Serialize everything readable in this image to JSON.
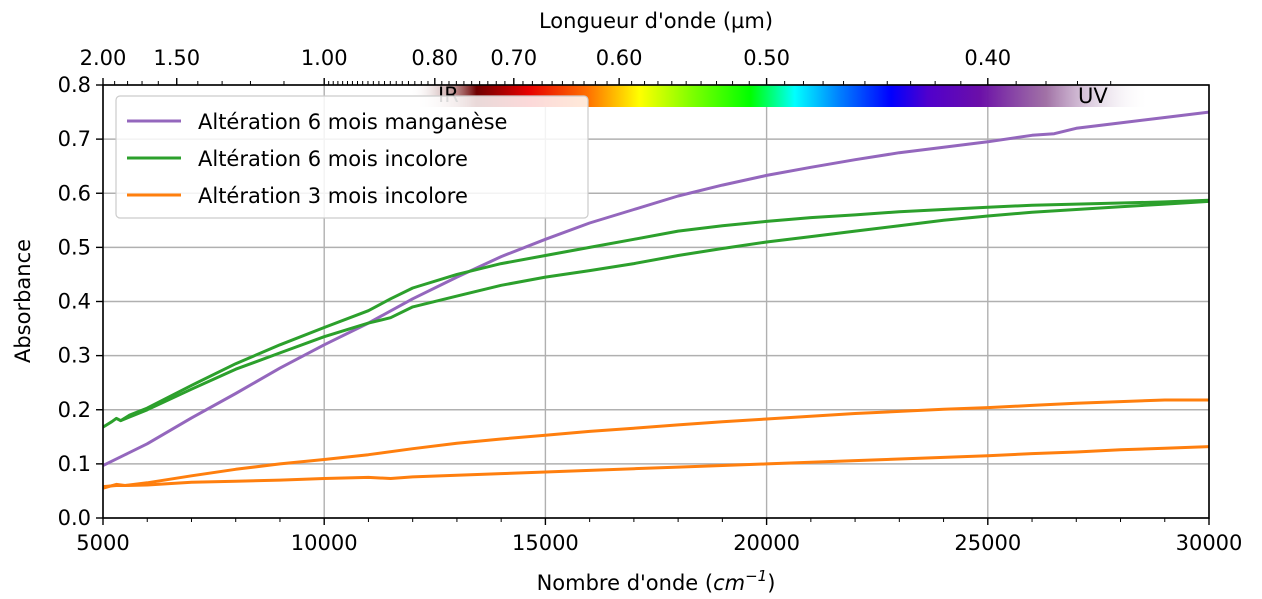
{
  "chart_data": {
    "type": "line",
    "xlabel": "Nombre d'onde",
    "xlabel_unit_base": "cm",
    "xlabel_unit_exp": "−1",
    "ylabel": "Absorbance",
    "top_xlabel": "Longueur d'onde (µm)",
    "xlim": [
      5000,
      30000
    ],
    "ylim": [
      0,
      0.8
    ],
    "x_ticks": [
      5000,
      10000,
      15000,
      20000,
      25000,
      30000
    ],
    "x_tick_labels": [
      "5000",
      "10000",
      "15000",
      "20000",
      "25000",
      "30000"
    ],
    "y_ticks": [
      0.0,
      0.1,
      0.2,
      0.3,
      0.4,
      0.5,
      0.6,
      0.7,
      0.8
    ],
    "y_tick_labels": [
      "0.0",
      "0.1",
      "0.2",
      "0.3",
      "0.4",
      "0.5",
      "0.6",
      "0.7",
      "0.8"
    ],
    "top_ticks_um": [
      2.0,
      1.5,
      1.0,
      0.8,
      0.7,
      0.6,
      0.5,
      0.4
    ],
    "top_tick_labels": [
      "2.00",
      "1.50",
      "1.00",
      "0.80",
      "0.70",
      "0.60",
      "0.50",
      "0.40"
    ],
    "grid": true,
    "legend_position": "top-left",
    "spectrum_band": {
      "ir_label": "IR",
      "uv_label": "UV"
    },
    "series": [
      {
        "name": "Altération 6 mois manganèse",
        "color": "#9467bd",
        "x": [
          5000,
          5500,
          6000,
          7000,
          8000,
          9000,
          10000,
          11000,
          12000,
          13000,
          14000,
          15000,
          16000,
          17000,
          18000,
          19000,
          20000,
          21000,
          22000,
          23000,
          24000,
          25000,
          26000,
          26500,
          27000,
          28000,
          29000,
          30000
        ],
        "y": [
          0.097,
          0.117,
          0.137,
          0.185,
          0.23,
          0.277,
          0.32,
          0.36,
          0.405,
          0.445,
          0.483,
          0.515,
          0.545,
          0.57,
          0.595,
          0.615,
          0.633,
          0.648,
          0.662,
          0.675,
          0.685,
          0.695,
          0.707,
          0.71,
          0.72,
          0.73,
          0.74,
          0.75
        ]
      },
      {
        "name": "Altération 6 mois incolore",
        "color": "#2ca02c",
        "x": [
          5000,
          5200,
          5300,
          5400,
          5600,
          6000,
          7000,
          8000,
          9000,
          10000,
          11000,
          11500,
          12000,
          13000,
          14000,
          15000,
          16000,
          17000,
          18000,
          19000,
          20000,
          21000,
          22000,
          23000,
          24000,
          25000,
          26000,
          27000,
          28000,
          29000,
          30000
        ],
        "y": [
          0.168,
          0.178,
          0.184,
          0.18,
          0.19,
          0.203,
          0.245,
          0.285,
          0.32,
          0.352,
          0.383,
          0.405,
          0.425,
          0.45,
          0.47,
          0.485,
          0.5,
          0.515,
          0.53,
          0.54,
          0.548,
          0.555,
          0.56,
          0.566,
          0.57,
          0.574,
          0.578,
          0.58,
          0.582,
          0.584,
          0.587
        ]
      },
      {
        "name": "",
        "color": "#2ca02c",
        "x": [
          5400,
          6000,
          7000,
          8000,
          9000,
          10000,
          11000,
          11500,
          12000,
          13000,
          14000,
          15000,
          16000,
          17000,
          18000,
          19000,
          20000,
          21000,
          22000,
          23000,
          24000,
          25000,
          26000,
          27000,
          28000,
          29000,
          30000
        ],
        "y": [
          0.18,
          0.2,
          0.238,
          0.275,
          0.305,
          0.335,
          0.36,
          0.37,
          0.39,
          0.41,
          0.43,
          0.445,
          0.457,
          0.47,
          0.485,
          0.498,
          0.51,
          0.52,
          0.53,
          0.54,
          0.55,
          0.558,
          0.565,
          0.57,
          0.575,
          0.58,
          0.585
        ]
      },
      {
        "name": "Altération 3 mois incolore",
        "color": "#ff7f0e",
        "x": [
          5000,
          5300,
          5500,
          6000,
          7000,
          8000,
          9000,
          10000,
          11000,
          12000,
          13000,
          14000,
          15000,
          16000,
          17000,
          18000,
          19000,
          20000,
          21000,
          22000,
          23000,
          24000,
          25000,
          26000,
          27000,
          28000,
          29000,
          30000
        ],
        "y": [
          0.055,
          0.062,
          0.06,
          0.065,
          0.078,
          0.09,
          0.1,
          0.108,
          0.117,
          0.128,
          0.138,
          0.146,
          0.153,
          0.16,
          0.166,
          0.172,
          0.178,
          0.183,
          0.188,
          0.193,
          0.197,
          0.201,
          0.204,
          0.208,
          0.212,
          0.215,
          0.218,
          0.218
        ]
      },
      {
        "name": "",
        "color": "#ff7f0e",
        "x": [
          5000,
          5300,
          5500,
          6000,
          7000,
          8000,
          9000,
          10000,
          11000,
          11500,
          12000,
          13000,
          14000,
          15000,
          16000,
          17000,
          18000,
          19000,
          20000,
          21000,
          22000,
          23000,
          24000,
          25000,
          26000,
          27000,
          28000,
          29000,
          30000
        ],
        "y": [
          0.058,
          0.06,
          0.06,
          0.061,
          0.066,
          0.068,
          0.07,
          0.073,
          0.075,
          0.073,
          0.076,
          0.079,
          0.082,
          0.085,
          0.088,
          0.091,
          0.094,
          0.097,
          0.1,
          0.103,
          0.106,
          0.109,
          0.112,
          0.115,
          0.119,
          0.122,
          0.126,
          0.129,
          0.132
        ]
      }
    ]
  }
}
